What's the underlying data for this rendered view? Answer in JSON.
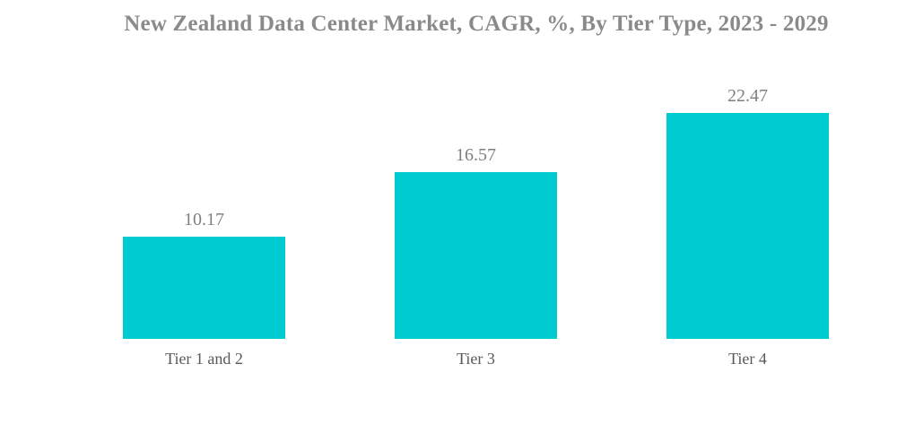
{
  "chart_data": {
    "type": "bar",
    "title": "New Zealand Data Center Market, CAGR, %, By Tier Type, 2023 - 2029",
    "categories": [
      "Tier 1 and 2",
      "Tier 3",
      "Tier 4"
    ],
    "values": [
      10.17,
      16.57,
      22.47
    ],
    "value_labels": [
      "10.17",
      "16.57",
      "22.47"
    ],
    "xlabel": "",
    "ylabel": "",
    "ylim": [
      0,
      24.7
    ],
    "grid": "off",
    "legend": "none",
    "data_labels_position": "above-bars"
  },
  "colors": {
    "bar": "#00cbd1",
    "title_text": "#8a8a8a",
    "value_text": "#7f7f7f",
    "category_text": "#595959",
    "background": "#ffffff"
  }
}
